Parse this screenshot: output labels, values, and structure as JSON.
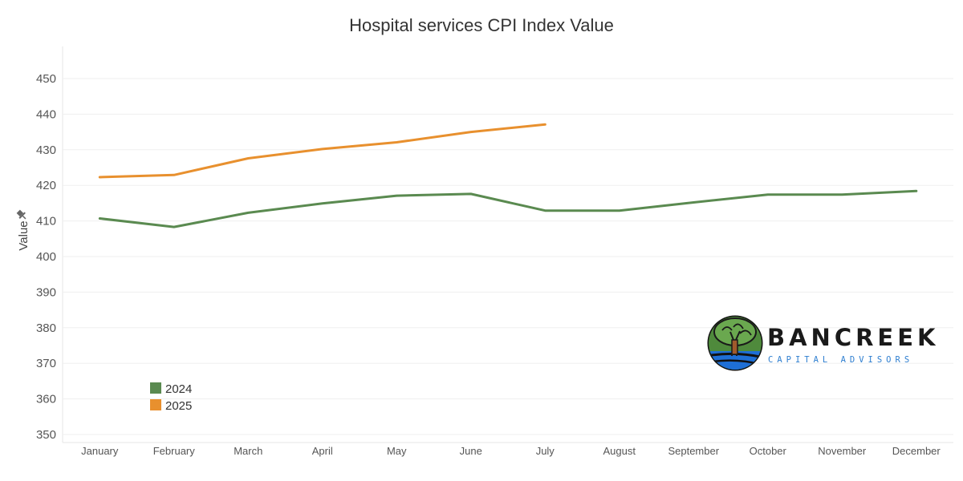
{
  "chart_data": {
    "type": "line",
    "title": "Hospital services CPI Index Value",
    "xlabel": "",
    "ylabel": "Value",
    "categories": [
      "January",
      "February",
      "March",
      "April",
      "May",
      "June",
      "July",
      "August",
      "September",
      "October",
      "November",
      "December"
    ],
    "series": [
      {
        "name": "2024",
        "color": "#5a8a50",
        "values": [
          410.7,
          408.3,
          412.3,
          414.9,
          417.1,
          417.6,
          412.9,
          412.9,
          415.2,
          417.4,
          417.4,
          418.4
        ]
      },
      {
        "name": "2025",
        "color": "#e8902e",
        "values": [
          422.3,
          422.9,
          427.6,
          430.2,
          432.1,
          435.0,
          437.1,
          null,
          null,
          null,
          null,
          null
        ]
      }
    ],
    "ylim": [
      350,
      450
    ],
    "yticks": [
      350,
      360,
      370,
      380,
      390,
      400,
      410,
      420,
      430,
      440,
      450
    ],
    "grid": true,
    "legend_position": "bottom-left"
  },
  "logo": {
    "name": "BANCREEK",
    "tagline": "CAPITAL ADVISORS",
    "icon": "tree-river-logo-icon"
  }
}
